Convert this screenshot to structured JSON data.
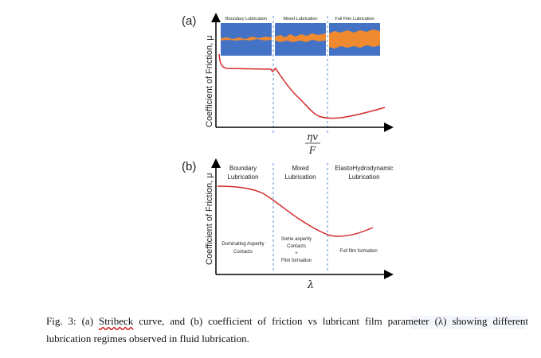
{
  "panel_a": {
    "label": "(a)",
    "ylabel": "Coefficient of Friction, μ",
    "regimes": [
      "Boundary Lubrication",
      "Mixed Lubrication",
      "Full Film Lubrication"
    ],
    "xlabel_num": "ηv",
    "xlabel_den": "F"
  },
  "panel_b": {
    "label": "(b)",
    "ylabel": "Coefficient of Friction, μ",
    "regimes_line1": [
      "Boundary",
      "Mixed",
      "ElastoHydrodynamic"
    ],
    "regimes_line2": [
      "Lubrication",
      "Lubrication",
      "Lubrication"
    ],
    "boundary_note_1": "Dominating Asperity",
    "boundary_note_2": "Contacts",
    "mixed_note_1": "Some asperity",
    "mixed_note_2": "Contacts",
    "mixed_note_3": "+",
    "mixed_note_4": "Film formation",
    "ehl_note": "Full film formation",
    "xlabel": "λ"
  },
  "caption": {
    "part1": "Fig. 3: (a) ",
    "word": "Stribeck",
    "part2": " curve, and (b) coefficient of friction vs lubricant film parameter (λ) showing different lubrication regimes observed in fluid lubrication."
  },
  "colors": {
    "curve": "#d42a2a",
    "surface": "#4472c4",
    "film": "#f08a30",
    "axis": "#000000",
    "divider": "#5b8dd6"
  }
}
